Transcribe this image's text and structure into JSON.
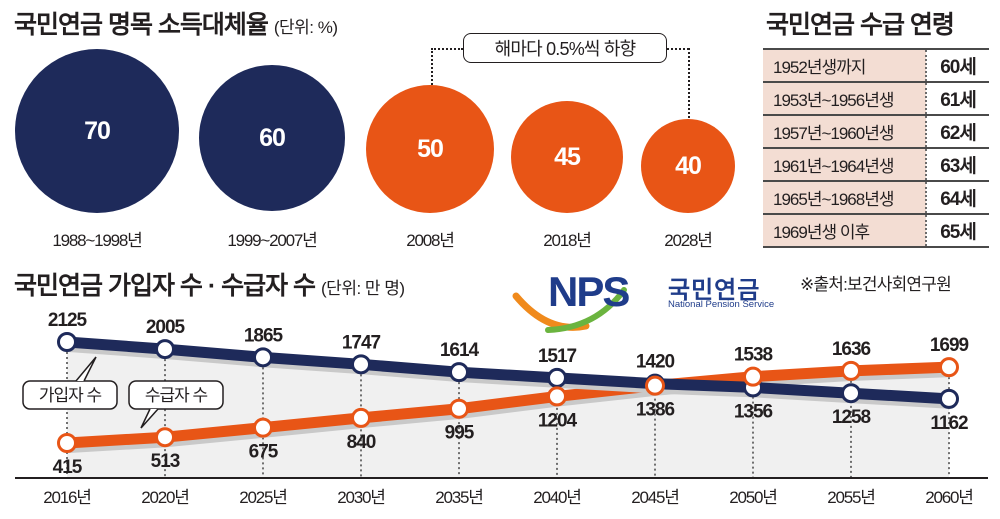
{
  "colors": {
    "navy": "#1e2a5a",
    "orange": "#e85516",
    "table_bg": "#f3ddd3",
    "area_fill": "#f0f0f0"
  },
  "replacement_rate": {
    "title": "국민연금 명목 소득대체율",
    "unit": "(단위: %)",
    "note": "해마다 0.5%씩 하향",
    "items": [
      {
        "period": "1988~1998년",
        "value": "70",
        "color": "navy"
      },
      {
        "period": "1999~2007년",
        "value": "60",
        "color": "navy"
      },
      {
        "period": "2008년",
        "value": "50",
        "color": "orange"
      },
      {
        "period": "2018년",
        "value": "45",
        "color": "orange"
      },
      {
        "period": "2028년",
        "value": "40",
        "color": "orange"
      }
    ]
  },
  "pension_age": {
    "title": "국민연금 수급 연령",
    "rows": [
      {
        "birth": "1952년생까지",
        "age": "60세"
      },
      {
        "birth": "1953년~1956년생",
        "age": "61세"
      },
      {
        "birth": "1957년~1960년생",
        "age": "62세"
      },
      {
        "birth": "1961년~1964년생",
        "age": "63세"
      },
      {
        "birth": "1965년~1968년생",
        "age": "64세"
      },
      {
        "birth": "1969년생 이후",
        "age": "65세"
      }
    ]
  },
  "logo": {
    "mark": "NPS",
    "name_ko": "국민연금",
    "name_en": "National Pension Service"
  },
  "source": "※출처:보건사회연구원",
  "chart_data": [
    {
      "type": "bubble",
      "title": "국민연금 명목 소득대체율",
      "unit": "%",
      "categories": [
        "1988~1998년",
        "1999~2007년",
        "2008년",
        "2018년",
        "2028년"
      ],
      "values": [
        70,
        60,
        50,
        45,
        40
      ],
      "annotation": "해마다 0.5%씩 하향 (2008년 → 2028년)"
    },
    {
      "type": "line",
      "title": "국민연금 가입자 수 · 수급자 수",
      "unit": "(단위: 만 명)",
      "categories": [
        "2016년",
        "2020년",
        "2025년",
        "2030년",
        "2035년",
        "2040년",
        "2045년",
        "2050년",
        "2055년",
        "2060년"
      ],
      "series": [
        {
          "name": "가입자 수",
          "color": "navy",
          "values": [
            2125,
            2005,
            1865,
            1747,
            1614,
            1517,
            1420,
            1356,
            1258,
            1162
          ]
        },
        {
          "name": "수급자 수",
          "color": "orange",
          "values": [
            415,
            513,
            675,
            840,
            995,
            1204,
            1386,
            1538,
            1636,
            1699
          ]
        }
      ],
      "xlabel": "",
      "ylabel": "",
      "ylim": [
        415,
        2125
      ],
      "grid": false,
      "legend": "callouts-left"
    }
  ]
}
